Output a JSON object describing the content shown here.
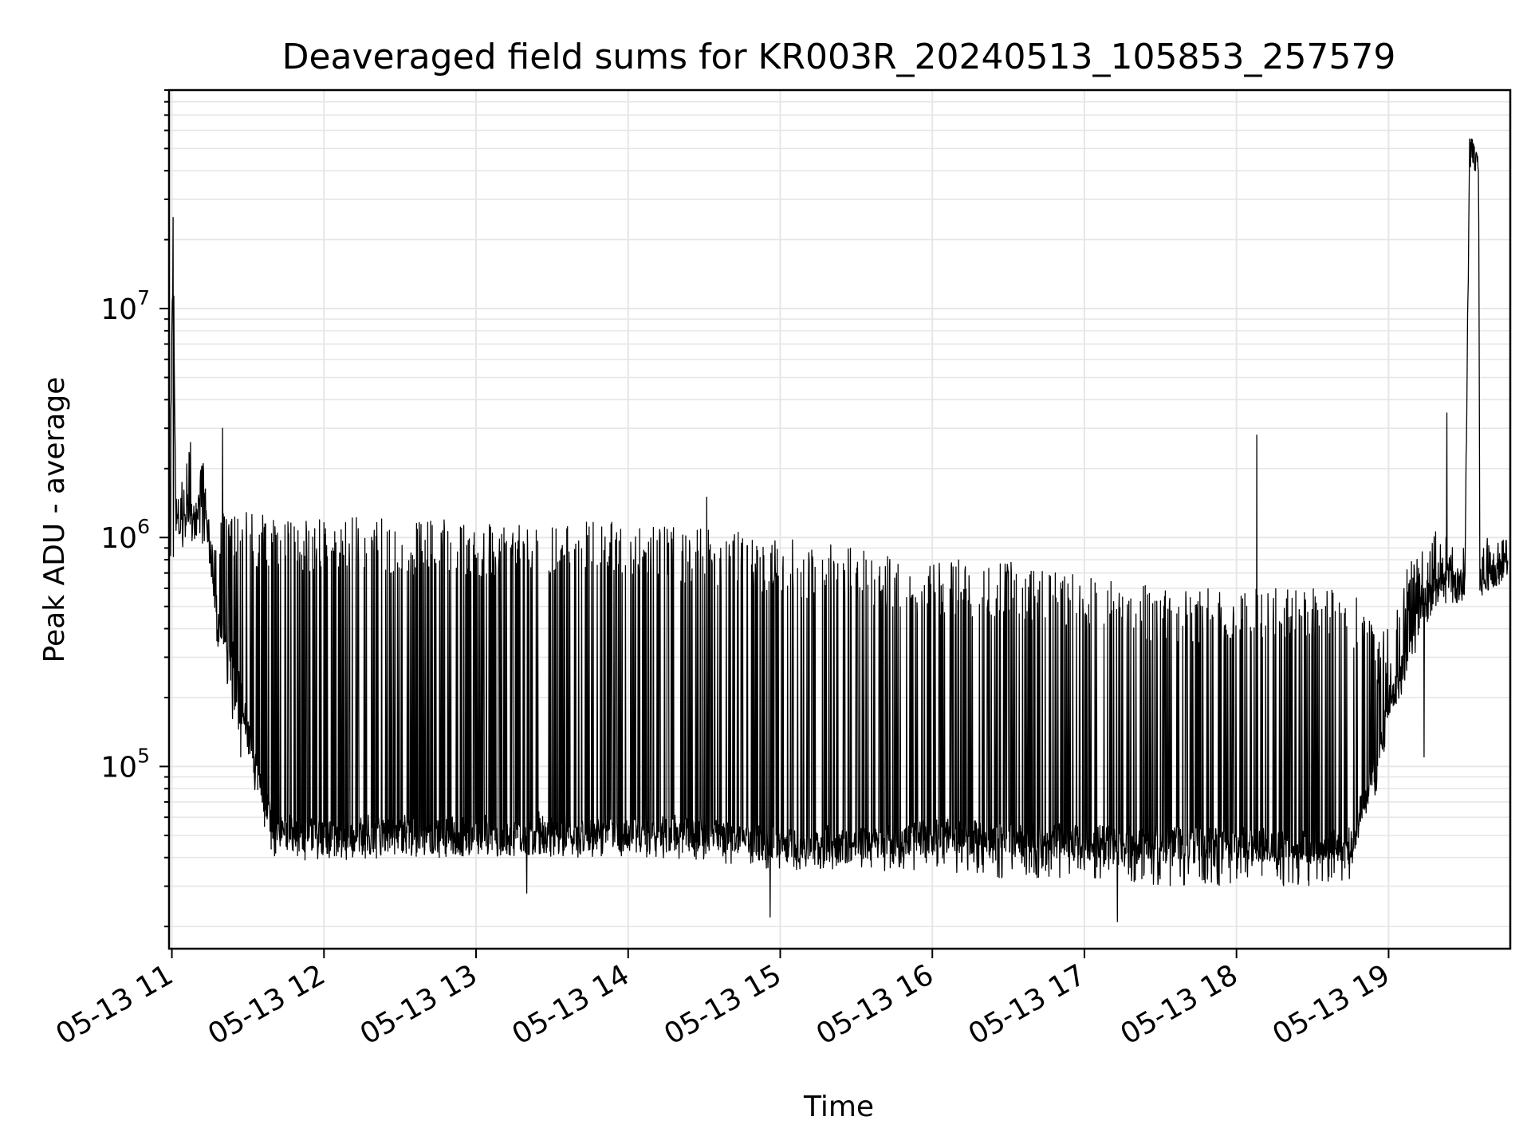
{
  "chart_data": {
    "type": "line",
    "title": "Deaveraged field sums for KR003R_20240513_105853_257579",
    "xlabel": "Time",
    "ylabel": "Peak ADU - average",
    "x_scale": "time",
    "y_scale": "log",
    "xlim": [
      "2024-05-13T10:58:53",
      "2024-05-13T19:48:00"
    ],
    "ylim": [
      16000,
      90000000
    ],
    "grid": true,
    "legend": "none",
    "line_color": "#000000",
    "grid_color": "#e6e6e6",
    "x_ticks": [
      {
        "value": "2024-05-13T11:00:00",
        "label": "05-13 11"
      },
      {
        "value": "2024-05-13T12:00:00",
        "label": "05-13 12"
      },
      {
        "value": "2024-05-13T13:00:00",
        "label": "05-13 13"
      },
      {
        "value": "2024-05-13T14:00:00",
        "label": "05-13 14"
      },
      {
        "value": "2024-05-13T15:00:00",
        "label": "05-13 15"
      },
      {
        "value": "2024-05-13T16:00:00",
        "label": "05-13 16"
      },
      {
        "value": "2024-05-13T17:00:00",
        "label": "05-13 17"
      },
      {
        "value": "2024-05-13T18:00:00",
        "label": "05-13 18"
      },
      {
        "value": "2024-05-13T19:00:00",
        "label": "05-13 19"
      }
    ],
    "y_ticks": [
      {
        "value": 100000,
        "base": "10",
        "exp": "5"
      },
      {
        "value": 1000000,
        "base": "10",
        "exp": "6"
      },
      {
        "value": 10000000,
        "base": "10",
        "exp": "7"
      }
    ],
    "series": [
      {
        "x": [
          "2024-05-13T10:59:00",
          "2024-05-13T11:00:30",
          "2024-05-13T11:01:30",
          "2024-05-13T11:02:30",
          "2024-05-13T11:05:00",
          "2024-05-13T11:08:00",
          "2024-05-13T11:10:00",
          "2024-05-13T11:12:00",
          "2024-05-13T11:15:00",
          "2024-05-13T11:18:00",
          "2024-05-13T11:20:00",
          "2024-05-13T11:24:00",
          "2024-05-13T11:28:00",
          "2024-05-13T11:32:00",
          "2024-05-13T11:36:00",
          "2024-05-13T11:40:00",
          "2024-05-13T11:44:00",
          "2024-05-13T11:48:00",
          "2024-05-13T12:00:00",
          "2024-05-13T12:30:00",
          "2024-05-13T13:00:00",
          "2024-05-13T13:30:00",
          "2024-05-13T14:00:00",
          "2024-05-13T14:30:00",
          "2024-05-13T15:00:00",
          "2024-05-13T15:30:00",
          "2024-05-13T16:00:00",
          "2024-05-13T16:30:00",
          "2024-05-13T17:00:00",
          "2024-05-13T17:30:00",
          "2024-05-13T18:00:00",
          "2024-05-13T18:30:00",
          "2024-05-13T18:45:00",
          "2024-05-13T18:50:00",
          "2024-05-13T18:55:00",
          "2024-05-13T19:00:00",
          "2024-05-13T19:05:00",
          "2024-05-13T19:10:00",
          "2024-05-13T19:14:00",
          "2024-05-13T19:18:00",
          "2024-05-13T19:25:00",
          "2024-05-13T19:30:00",
          "2024-05-13T19:32:00",
          "2024-05-13T19:33:00",
          "2024-05-13T19:34:00",
          "2024-05-13T19:35:30",
          "2024-05-13T19:36:00",
          "2024-05-13T19:40:00",
          "2024-05-13T19:47:00"
        ],
        "y": [
          800000,
          25000000,
          1300000,
          1100000,
          1200000,
          1300000,
          1100000,
          2100000,
          900000,
          420000,
          400000,
          320000,
          180000,
          110000,
          75000,
          55000,
          52000,
          50000,
          48000,
          50000,
          48000,
          48000,
          50000,
          50000,
          45000,
          45000,
          50000,
          48000,
          47000,
          46000,
          46000,
          44000,
          46000,
          70000,
          90000,
          180000,
          250000,
          380000,
          450000,
          600000,
          620000,
          580000,
          48000000,
          50000000,
          45000000,
          40000000,
          650000,
          650000,
          800000
        ],
        "y_min": [
          800000,
          800000,
          900000,
          900000,
          900000,
          950000,
          900000,
          900000,
          750000,
          320000,
          280000,
          150000,
          100000,
          80000,
          55000,
          40000,
          40000,
          38000,
          38000,
          40000,
          40000,
          40000,
          40000,
          38000,
          35000,
          35000,
          35000,
          32000,
          32000,
          30000,
          30000,
          30000,
          32000,
          55000,
          70000,
          150000,
          200000,
          300000,
          380000,
          450000,
          500000,
          450000,
          40000000,
          45000000,
          40000000,
          40000000,
          550000,
          600000,
          650000
        ],
        "y_max": [
          3000000,
          25000000,
          2800000,
          2000000,
          2000000,
          3000000,
          2200000,
          2200000,
          1500000,
          900000,
          1300000,
          1300000,
          1300000,
          1300000,
          1250000,
          1250000,
          1250000,
          1250000,
          1250000,
          1200000,
          1200000,
          1200000,
          1200000,
          1100000,
          1000000,
          900000,
          800000,
          800000,
          700000,
          600000,
          600000,
          600000,
          600000,
          500000,
          400000,
          400000,
          700000,
          900000,
          900000,
          1200000,
          1000000,
          900000,
          55000000,
          55000000,
          50000000,
          45000000,
          1300000,
          900000,
          1000000
        ],
        "notable_points": [
          {
            "x": "2024-05-13T11:00:30",
            "y": 25000000
          },
          {
            "x": "2024-05-13T11:20:00",
            "y": 3000000
          },
          {
            "x": "2024-05-13T13:20:00",
            "y": 28000
          },
          {
            "x": "2024-05-13T14:31:00",
            "y": 1500000
          },
          {
            "x": "2024-05-13T14:56:00",
            "y": 22000
          },
          {
            "x": "2024-05-13T17:13:00",
            "y": 21000
          },
          {
            "x": "2024-05-13T18:08:00",
            "y": 2800000
          },
          {
            "x": "2024-05-13T19:14:00",
            "y": 110000
          },
          {
            "x": "2024-05-13T19:23:00",
            "y": 3500000
          },
          {
            "x": "2024-05-13T19:32:00",
            "y": 55000000
          }
        ]
      }
    ]
  }
}
